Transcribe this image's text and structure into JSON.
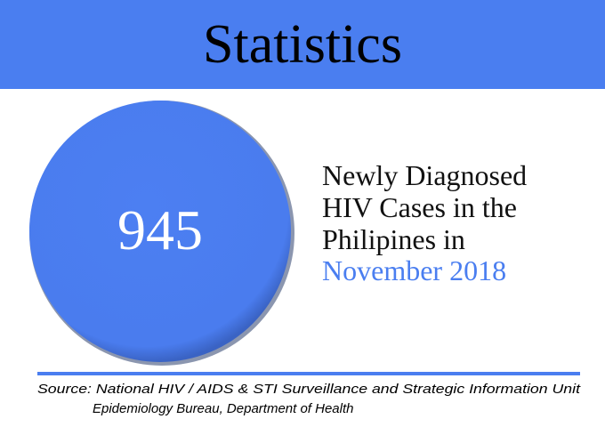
{
  "header": {
    "title": "Statistics"
  },
  "stat": {
    "value": 945
  },
  "description": {
    "lines": [
      "Newly Diagnosed",
      "HIV Cases in the",
      "Philipines in"
    ],
    "highlight": "November 2018"
  },
  "source": {
    "lines": [
      "Source: National HIV / AIDS & STI Surveillance and Strategic Information Unit",
      "Epidemiology Bureau, Department of Health"
    ]
  }
}
